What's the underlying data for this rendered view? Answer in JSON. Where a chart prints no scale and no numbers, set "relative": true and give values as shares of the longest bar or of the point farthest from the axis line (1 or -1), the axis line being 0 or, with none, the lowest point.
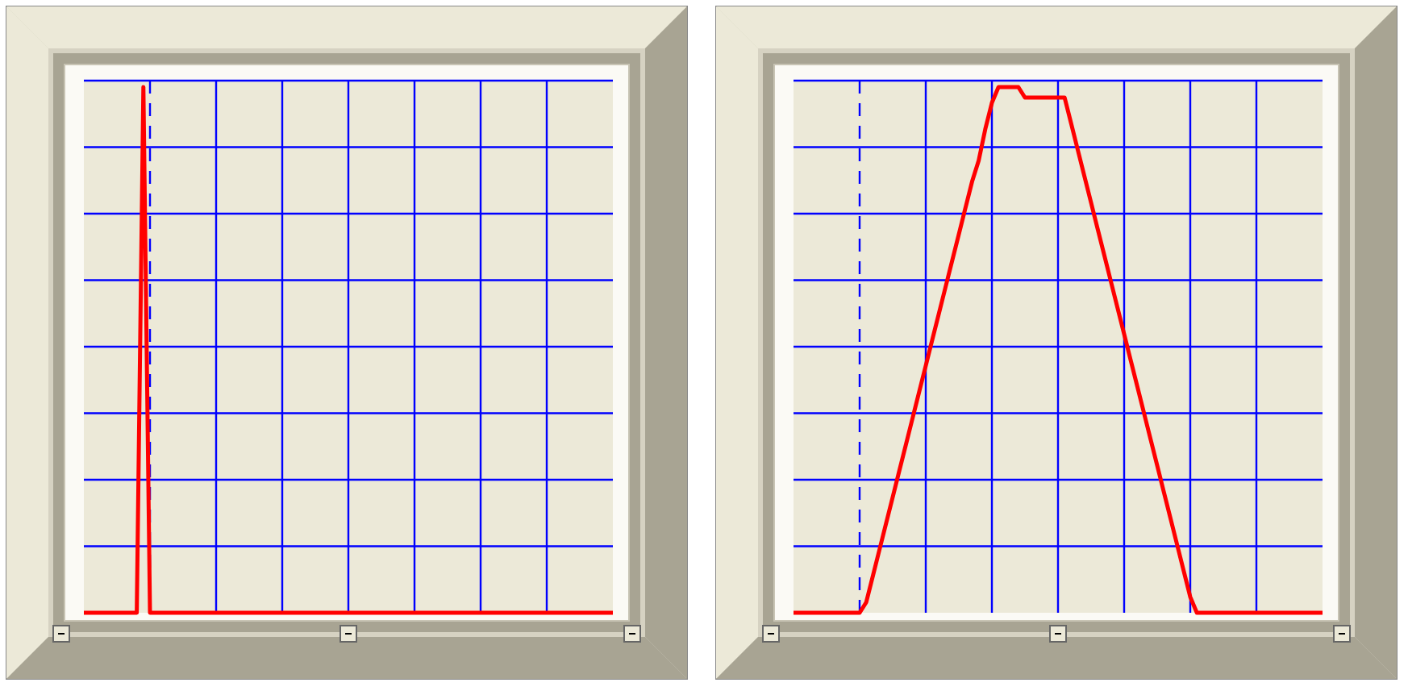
{
  "chart_data": [
    {
      "type": "line",
      "relative": true,
      "grid": true,
      "line_style": "solid",
      "categories": [
        null,
        null,
        null,
        null,
        null,
        null,
        null,
        null,
        null,
        null,
        null,
        null,
        null,
        null,
        null,
        null,
        null,
        null,
        null,
        null,
        null,
        null,
        null,
        null,
        null,
        null,
        null,
        null,
        null,
        null,
        null,
        null,
        null,
        null,
        null,
        null,
        null,
        null,
        null,
        null,
        null,
        null,
        null,
        null,
        null,
        null,
        null,
        null,
        null,
        null,
        null,
        null,
        null,
        null,
        null,
        null,
        null,
        null,
        null,
        null,
        null,
        null,
        null,
        null,
        null,
        null,
        null,
        null,
        null,
        null,
        null,
        null,
        null,
        null,
        null,
        null,
        null,
        null,
        null,
        null,
        null
      ],
      "series": [
        {
          "color": "#ff0000",
          "values": [
            0,
            0,
            0,
            0,
            0,
            0,
            0,
            0,
            0,
            1,
            0,
            0,
            0,
            0,
            0,
            0,
            0,
            0,
            0,
            0,
            0,
            0,
            0,
            0,
            0,
            0,
            0,
            0,
            0,
            0,
            0,
            0,
            0,
            0,
            0,
            0,
            0,
            0,
            0,
            0,
            0,
            0,
            0,
            0,
            0,
            0,
            0,
            0,
            0,
            0,
            0,
            0,
            0,
            0,
            0,
            0,
            0,
            0,
            0,
            0,
            0,
            0,
            0,
            0,
            0,
            0,
            0,
            0,
            0,
            0,
            0,
            0,
            0,
            0,
            0,
            0,
            0,
            0,
            0,
            0,
            0
          ]
        }
      ]
    },
    {
      "type": "line",
      "relative": true,
      "grid": true,
      "line_style": "solid",
      "categories": [
        null,
        null,
        null,
        null,
        null,
        null,
        null,
        null,
        null,
        null,
        null,
        null,
        null,
        null,
        null,
        null,
        null,
        null,
        null,
        null,
        null,
        null,
        null,
        null,
        null,
        null,
        null,
        null,
        null,
        null,
        null,
        null,
        null,
        null,
        null,
        null,
        null,
        null,
        null,
        null,
        null,
        null,
        null,
        null,
        null,
        null,
        null,
        null,
        null,
        null,
        null,
        null,
        null,
        null,
        null,
        null,
        null,
        null,
        null,
        null,
        null,
        null,
        null,
        null,
        null,
        null,
        null,
        null,
        null,
        null,
        null,
        null,
        null,
        null,
        null,
        null,
        null,
        null,
        null,
        null,
        null
      ],
      "series": [
        {
          "color": "#ff0000",
          "values": [
            0,
            0,
            0,
            0,
            0,
            0,
            0,
            0,
            0,
            0,
            0,
            0.02,
            0.07,
            0.12,
            0.17,
            0.22,
            0.27,
            0.32,
            0.37,
            0.42,
            0.47,
            0.52,
            0.57,
            0.62,
            0.67,
            0.72,
            0.77,
            0.82,
            0.86,
            0.92,
            0.97,
            1,
            1,
            1,
            1,
            0.98,
            0.98,
            0.98,
            0.98,
            0.98,
            0.98,
            0.98,
            0.93,
            0.88,
            0.83,
            0.78,
            0.73,
            0.68,
            0.63,
            0.58,
            0.53,
            0.48,
            0.43,
            0.38,
            0.33,
            0.28,
            0.23,
            0.18,
            0.13,
            0.08,
            0.03,
            0,
            0,
            0,
            0,
            0,
            0,
            0,
            0,
            0,
            0,
            0,
            0,
            0,
            0,
            0,
            0,
            0,
            0,
            0,
            0
          ]
        }
      ]
    }
  ]
}
